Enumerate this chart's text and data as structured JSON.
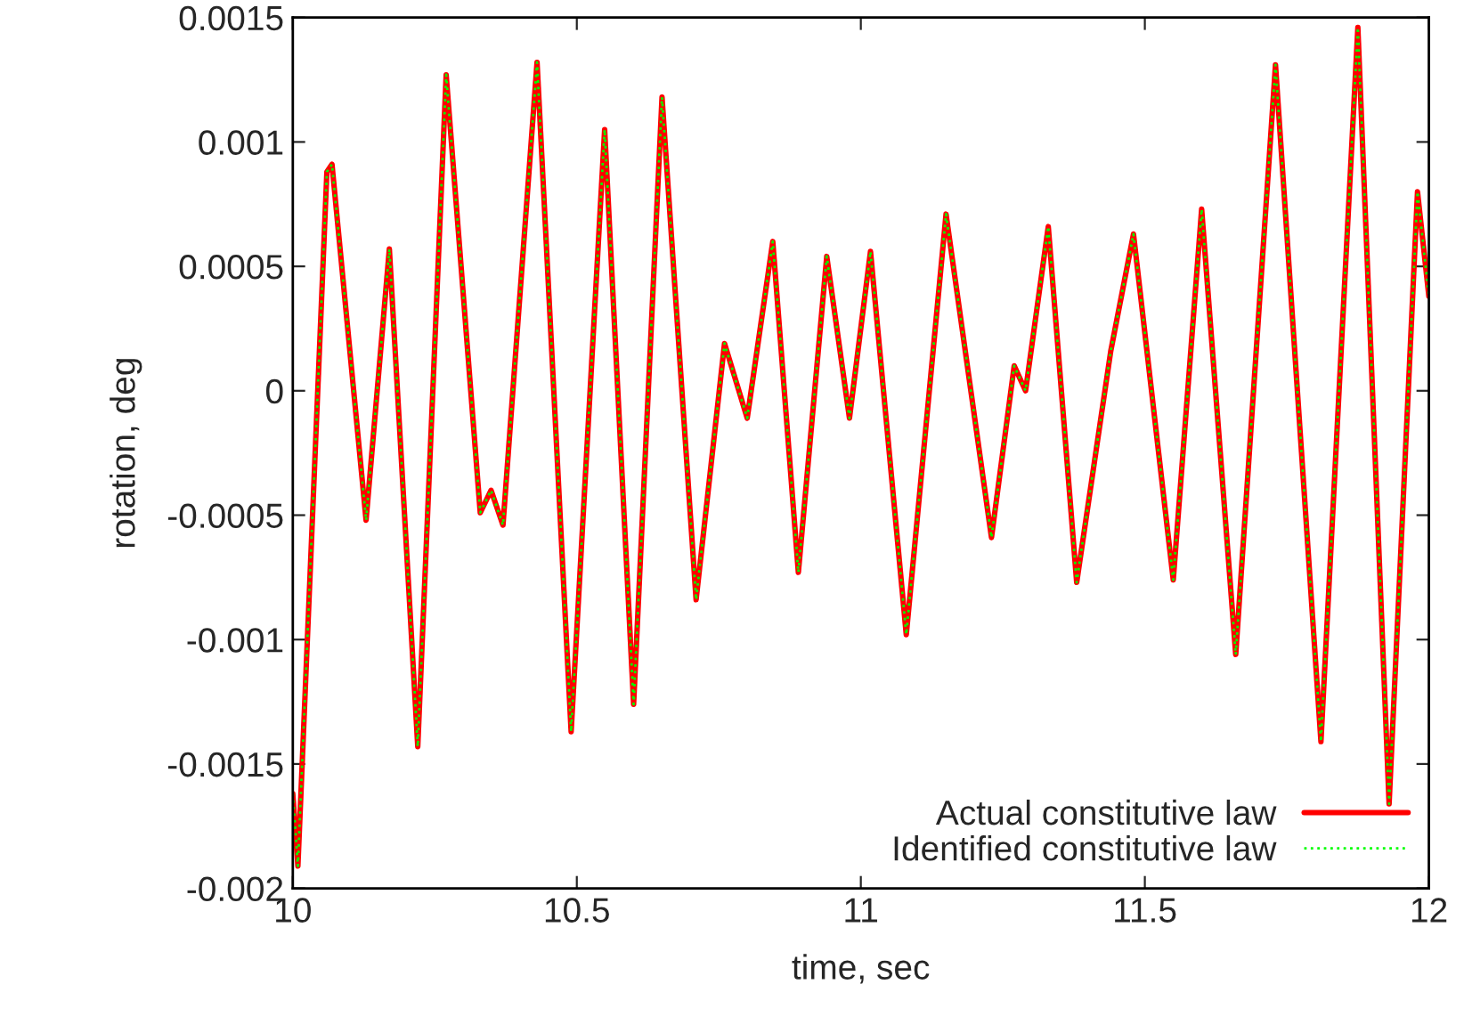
{
  "chart_data": {
    "type": "line",
    "xlabel": "time, sec",
    "ylabel": "rotation, deg",
    "x": [
      10.0,
      10.009,
      10.06,
      10.069,
      10.129,
      10.17,
      10.22,
      10.27,
      10.33,
      10.349,
      10.37,
      10.43,
      10.49,
      10.549,
      10.6,
      10.65,
      10.71,
      10.76,
      10.8,
      10.845,
      10.89,
      10.94,
      10.98,
      11.017,
      11.08,
      11.15,
      11.23,
      11.27,
      11.29,
      11.33,
      11.38,
      11.44,
      11.48,
      11.55,
      11.6,
      11.66,
      11.73,
      11.81,
      11.875,
      11.93,
      11.98,
      12.0
    ],
    "series": [
      {
        "name": "Actual constitutive law",
        "color": "#ff0000",
        "line_style": "solid",
        "values": [
          -0.00162,
          -0.00191,
          0.00088,
          0.00091,
          -0.00052,
          0.00057,
          -0.00143,
          0.00127,
          -0.00049,
          -0.0004,
          -0.00054,
          0.00132,
          -0.00137,
          0.00105,
          -0.00126,
          0.00118,
          -0.00084,
          0.00019,
          -0.00011,
          0.0006,
          -0.00073,
          0.00054,
          -0.00011,
          0.00056,
          -0.00098,
          0.00071,
          -0.00059,
          0.0001,
          0,
          0.00066,
          -0.00077,
          0.00016,
          0.00063,
          -0.00076,
          0.00073,
          -0.00106,
          0.00131,
          -0.00141,
          0.00146,
          -0.00166,
          0.0008,
          0.00038
        ]
      },
      {
        "name": "Identified constitutive law",
        "color": "#00ff00",
        "line_style": "dotted",
        "values": [
          -0.00162,
          -0.00191,
          0.00088,
          0.00091,
          -0.00052,
          0.00057,
          -0.00143,
          0.00127,
          -0.00049,
          -0.0004,
          -0.00054,
          0.00132,
          -0.00137,
          0.00105,
          -0.00126,
          0.00118,
          -0.00084,
          0.00019,
          -0.00011,
          0.0006,
          -0.00073,
          0.00054,
          -0.00011,
          0.00056,
          -0.00098,
          0.00071,
          -0.00059,
          0.0001,
          0,
          0.00066,
          -0.00077,
          0.00016,
          0.00063,
          -0.00076,
          0.00073,
          -0.00106,
          0.00131,
          -0.00141,
          0.00146,
          -0.00166,
          0.0008,
          0.00038
        ]
      }
    ],
    "xlim": [
      10,
      12
    ],
    "xticks": [
      10,
      10.5,
      11,
      11.5,
      12
    ],
    "ylim": [
      -0.002,
      0.0015
    ],
    "yticks": [
      -0.002,
      -0.0015,
      -0.001,
      -0.0005,
      0,
      0.0005,
      0.001,
      0.0015
    ],
    "grid": false,
    "legend": "bottom right",
    "marker": "none"
  }
}
